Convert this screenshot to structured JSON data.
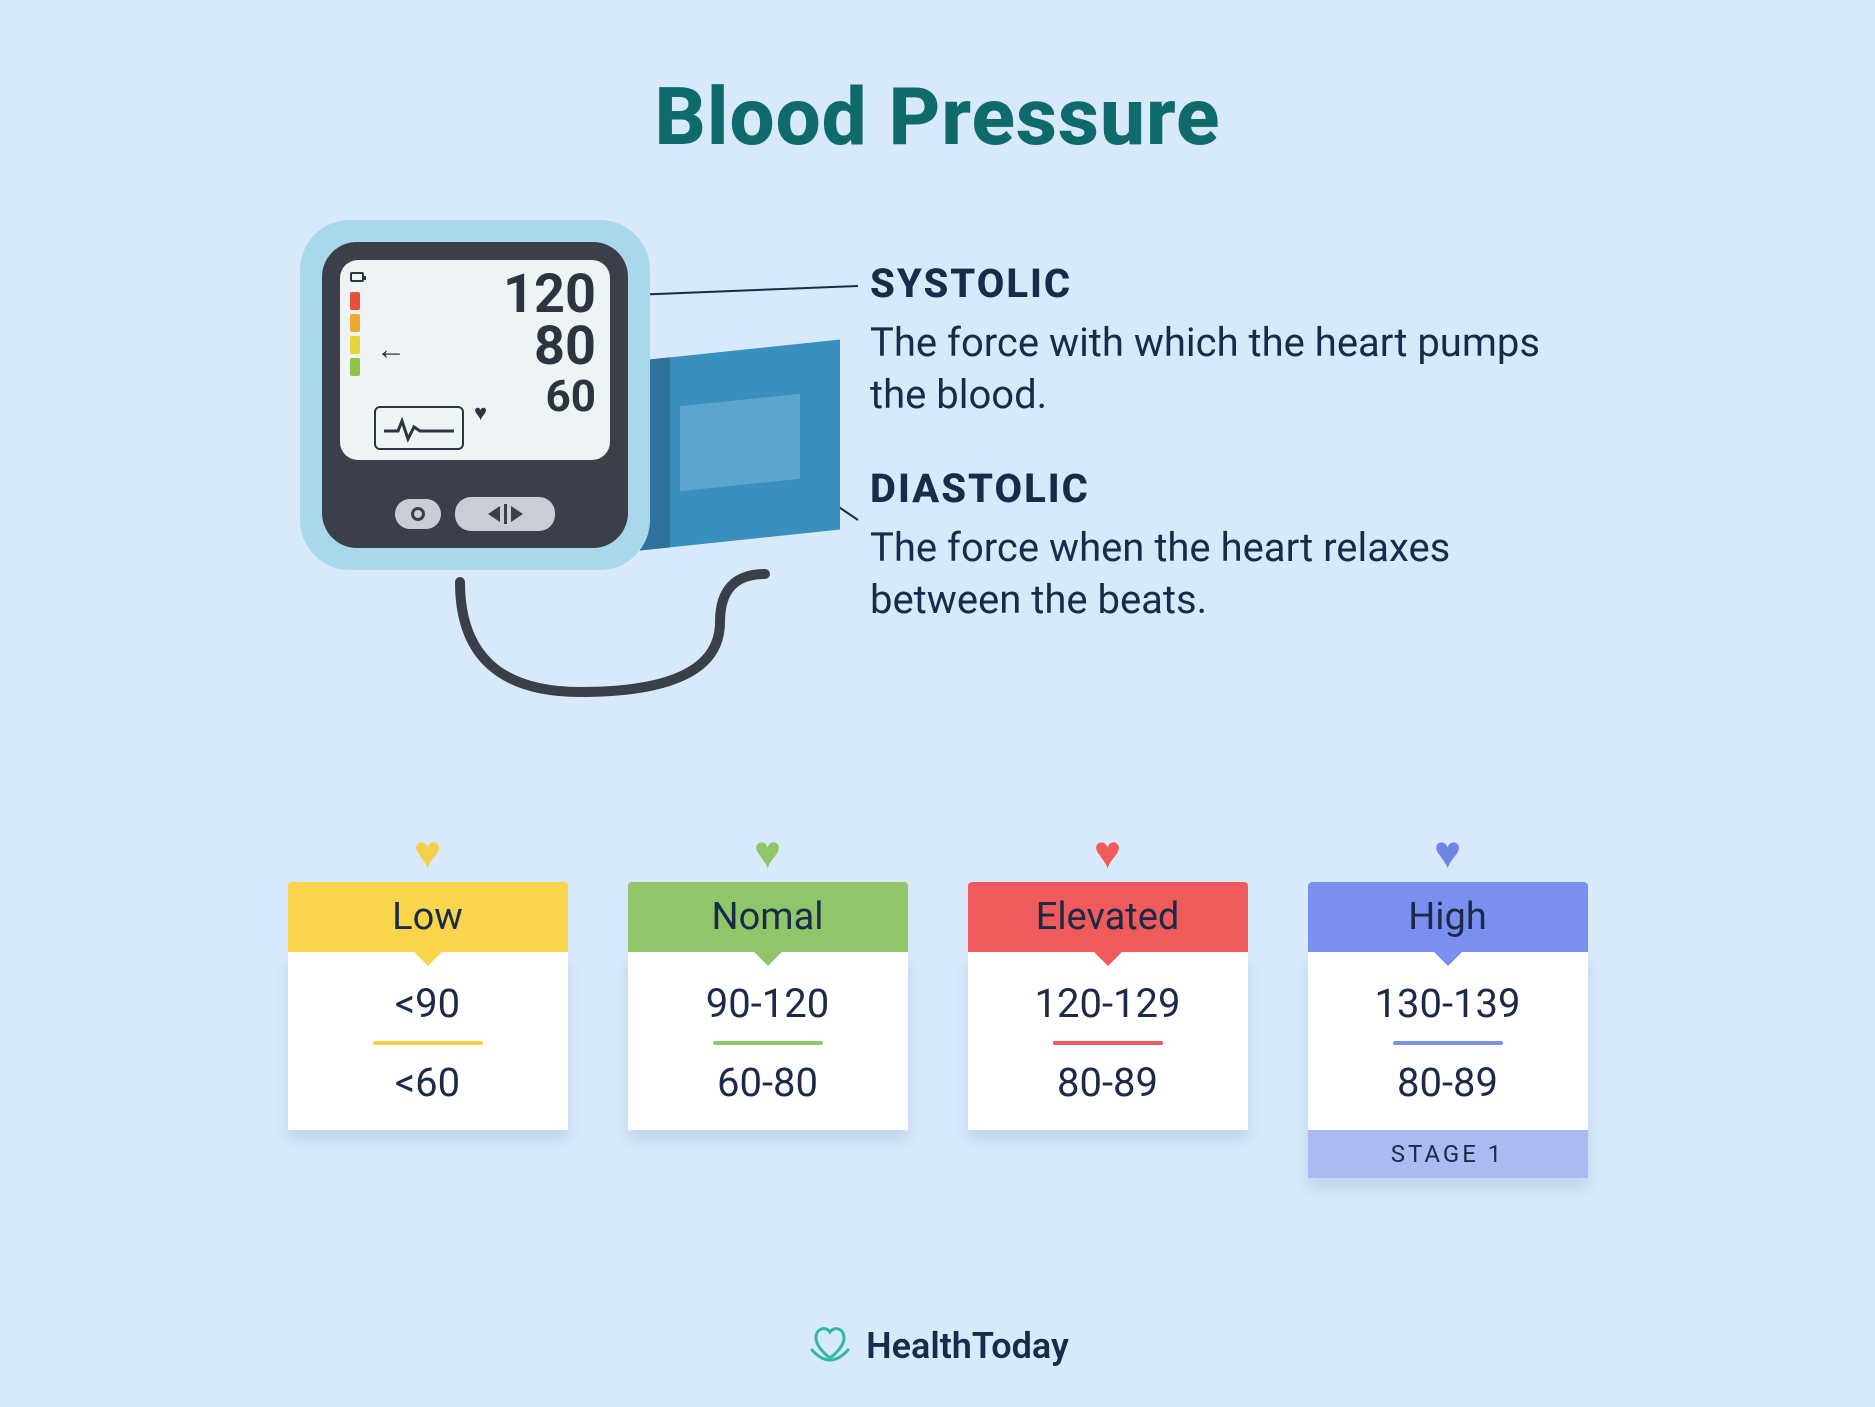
{
  "title": "Blood Pressure",
  "colors": {
    "background": "#d8e9fb",
    "title": "#0f6b6b",
    "text_dark": "#1c2a4a",
    "device_outer": "#a9d7ec",
    "device_inner": "#3a3f4a",
    "screen": "#eef3f5",
    "cuff": "#3b8fbe",
    "brand_accent": "#2fb8a6"
  },
  "monitor": {
    "systolic": "120",
    "diastolic": "80",
    "pulse": "60",
    "indicators": [
      "#e94f3b",
      "#f0a92e",
      "#e9d23a",
      "#8ac64c"
    ]
  },
  "definitions": {
    "systolic": {
      "label": "SYSTOLIC",
      "text": "The force with which the heart pumps the blood."
    },
    "diastolic": {
      "label": "DIASTOLIC",
      "text": "The force when the heart relaxes between the beats."
    }
  },
  "categories": [
    {
      "name": "Low",
      "heart_color": "#f4cf4a",
      "header_bg": "#f8d54b",
      "divider": "#f4cf4a",
      "systolic": "<90",
      "diastolic": "<60",
      "footer": null,
      "footer_bg": null
    },
    {
      "name": "Nomal",
      "heart_color": "#8fc66a",
      "header_bg": "#8fc66a",
      "divider": "#8fc66a",
      "systolic": "90-120",
      "diastolic": "60-80",
      "footer": null,
      "footer_bg": null
    },
    {
      "name": "Elevated",
      "heart_color": "#ef5a5a",
      "header_bg": "#ef5a5a",
      "divider": "#ef5a5a",
      "systolic": "120-129",
      "diastolic": "80-89",
      "footer": null,
      "footer_bg": null
    },
    {
      "name": "High",
      "heart_color": "#6e85e6",
      "header_bg": "#7a8ff0",
      "divider": "#7a8ff0",
      "systolic": "130-139",
      "diastolic": "80-89",
      "footer": "STAGE 1",
      "footer_bg": "#aeb9f2"
    }
  ],
  "brand": "HealthToday"
}
